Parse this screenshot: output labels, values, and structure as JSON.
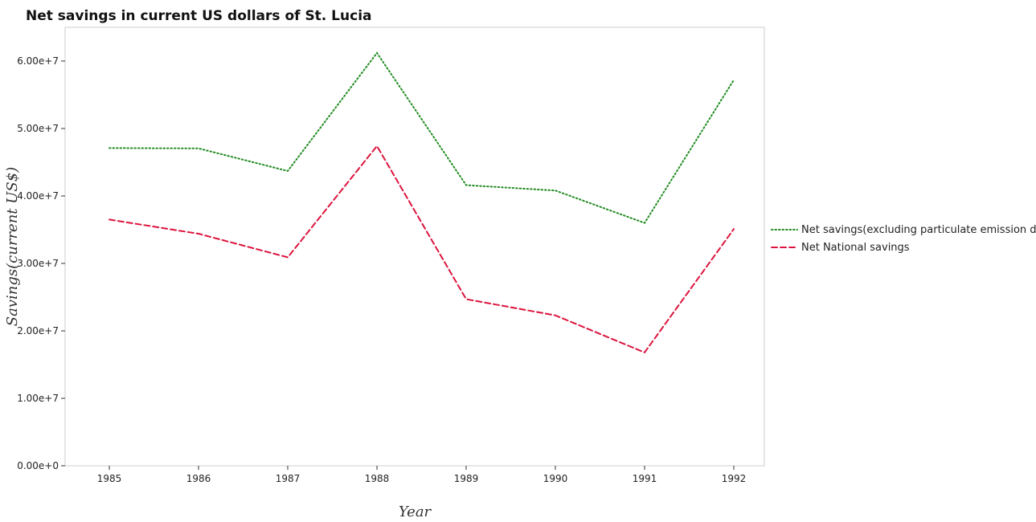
{
  "chart_data": {
    "type": "line",
    "title": "Net savings in current US dollars of St. Lucia",
    "xlabel": "Year",
    "ylabel": "Savings(current US$)",
    "categories": [
      "1985",
      "1986",
      "1987",
      "1988",
      "1989",
      "1990",
      "1991",
      "1992"
    ],
    "ylim": [
      0,
      65000000
    ],
    "yticks": [
      0,
      10000000,
      20000000,
      30000000,
      40000000,
      50000000,
      60000000
    ],
    "ytick_labels": [
      "0.00e+0",
      "1.00e+7",
      "2.00e+7",
      "3.00e+7",
      "4.00e+7",
      "5.00e+7",
      "6.00e+7"
    ],
    "grid": false,
    "legend_position": "right",
    "series": [
      {
        "name": "Net savings(excluding particulate emission damage)",
        "color": "#228b22",
        "dash": "dotted",
        "values": [
          47100000,
          47050000,
          43700000,
          61200000,
          41600000,
          40800000,
          36000000,
          57200000
        ]
      },
      {
        "name": "Net National savings",
        "color": "#dc143c",
        "dash": "dashed",
        "values": [
          36500000,
          34400000,
          30900000,
          47400000,
          24700000,
          22300000,
          16800000,
          35100000
        ]
      }
    ]
  }
}
